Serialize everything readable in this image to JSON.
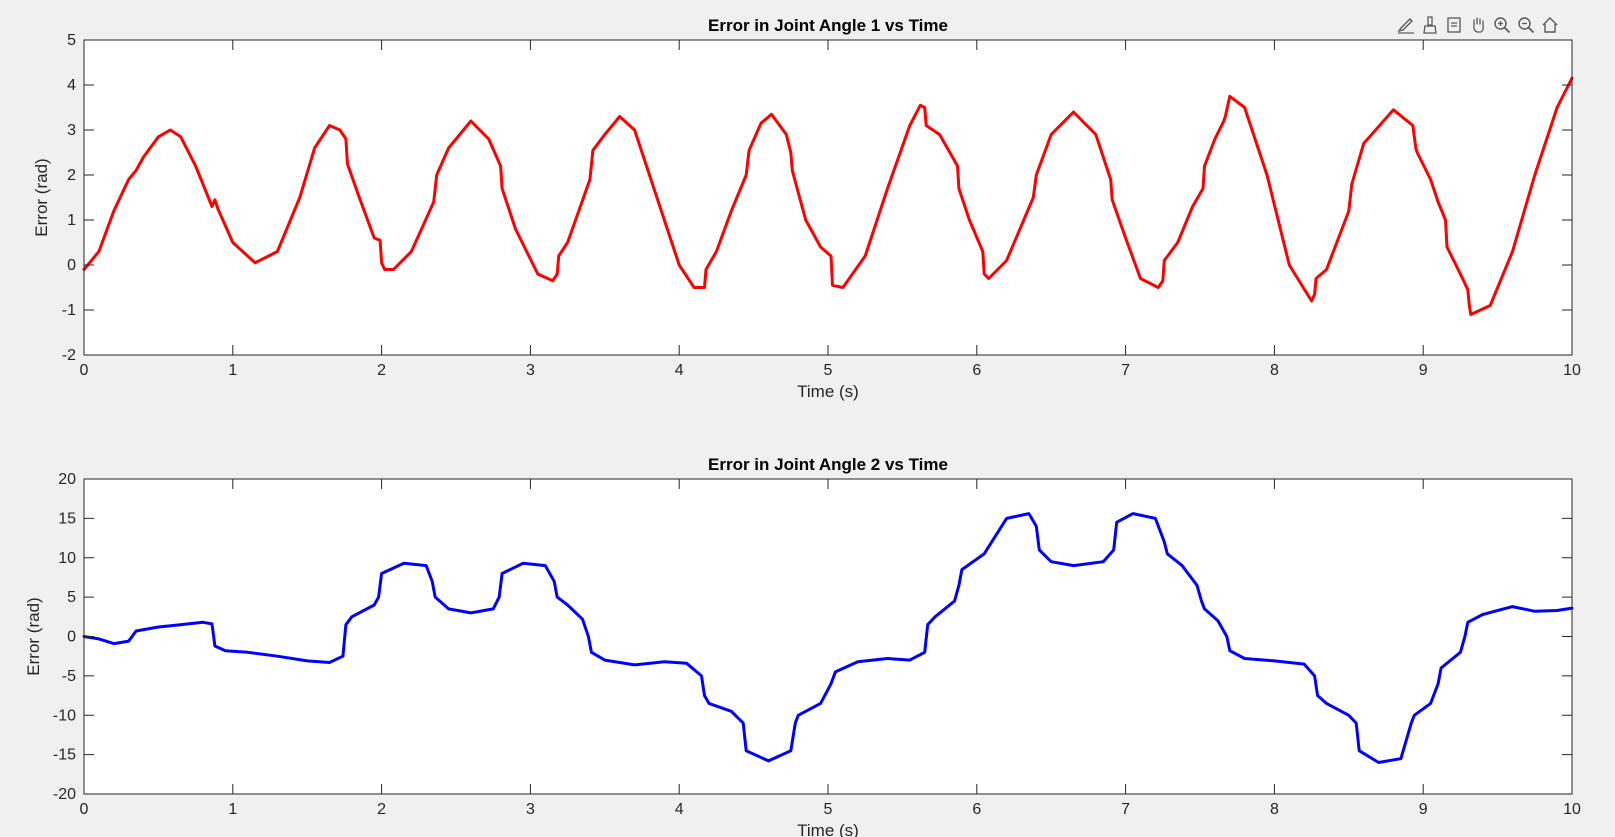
{
  "colors": {
    "background": "#f0f0f0",
    "axes_bg": "#ffffff",
    "axis": "#262626",
    "series1": "#ff0000",
    "series2": "#0000ff"
  },
  "toolbar": {
    "items": [
      {
        "name": "brush-edit-icon"
      },
      {
        "name": "data-brush-icon"
      },
      {
        "name": "data-tips-icon"
      },
      {
        "name": "pan-hand-icon"
      },
      {
        "name": "zoom-in-icon"
      },
      {
        "name": "zoom-out-icon"
      },
      {
        "name": "home-icon"
      }
    ]
  },
  "chart_data": [
    {
      "type": "line",
      "title": "Error in Joint Angle 1 vs Time",
      "xlabel": "Time (s)",
      "ylabel": "Error (rad)",
      "xlim": [
        0,
        10
      ],
      "ylim": [
        -2,
        5
      ],
      "xticks": [
        0,
        1,
        2,
        3,
        4,
        5,
        6,
        7,
        8,
        9,
        10
      ],
      "yticks": [
        -2,
        -1,
        0,
        1,
        2,
        3,
        4,
        5
      ],
      "grid": false,
      "series": [
        {
          "color": "#ff0000",
          "x": [
            0,
            0.1,
            0.2,
            0.3,
            0.35,
            0.4,
            0.5,
            0.58,
            0.65,
            0.75,
            0.86,
            0.88,
            0.9,
            1.0,
            1.15,
            1.3,
            1.45,
            1.55,
            1.65,
            1.72,
            1.76,
            1.77,
            1.85,
            1.95,
            1.99,
            2.0,
            2.02,
            2.08,
            2.2,
            2.35,
            2.37,
            2.45,
            2.6,
            2.72,
            2.8,
            2.81,
            2.9,
            3.05,
            3.15,
            3.18,
            3.19,
            3.25,
            3.4,
            3.42,
            3.5,
            3.6,
            3.7,
            3.85,
            4.0,
            4.1,
            4.17,
            4.18,
            4.25,
            4.35,
            4.45,
            4.47,
            4.55,
            4.62,
            4.72,
            4.75,
            4.76,
            4.85,
            4.95,
            5.02,
            5.03,
            5.1,
            5.25,
            5.4,
            5.55,
            5.62,
            5.65,
            5.66,
            5.75,
            5.87,
            5.88,
            5.95,
            6.04,
            6.05,
            6.08,
            6.2,
            6.38,
            6.4,
            6.5,
            6.65,
            6.8,
            6.9,
            6.91,
            7.0,
            7.1,
            7.22,
            7.25,
            7.26,
            7.35,
            7.45,
            7.52,
            7.53,
            7.6,
            7.66,
            7.67,
            7.7,
            7.8,
            7.95,
            8.1,
            8.25,
            8.27,
            8.28,
            8.35,
            8.5,
            8.52,
            8.6,
            8.8,
            8.93,
            8.95,
            8.96,
            9.05,
            9.1,
            9.15,
            9.16,
            9.25,
            9.3,
            9.31,
            9.32,
            9.45,
            9.6,
            9.75,
            9.9,
            10.0
          ],
          "y": [
            -0.1,
            0.3,
            1.2,
            1.9,
            2.1,
            2.4,
            2.85,
            3.0,
            2.85,
            2.2,
            1.3,
            1.45,
            1.25,
            0.5,
            0.05,
            0.3,
            1.5,
            2.6,
            3.1,
            3.0,
            2.8,
            2.25,
            1.5,
            0.6,
            0.55,
            0.05,
            -0.1,
            -0.1,
            0.3,
            1.4,
            2.0,
            2.6,
            3.2,
            2.8,
            2.2,
            1.7,
            0.8,
            -0.2,
            -0.35,
            -0.2,
            0.2,
            0.5,
            1.9,
            2.55,
            2.9,
            3.3,
            3.0,
            1.5,
            0.0,
            -0.5,
            -0.5,
            -0.1,
            0.3,
            1.2,
            2.0,
            2.55,
            3.15,
            3.35,
            2.9,
            2.5,
            2.1,
            1.0,
            0.4,
            0.2,
            -0.45,
            -0.5,
            0.2,
            1.7,
            3.1,
            3.55,
            3.5,
            3.1,
            2.9,
            2.2,
            1.7,
            1.0,
            0.3,
            -0.2,
            -0.3,
            0.1,
            1.5,
            2.0,
            2.9,
            3.4,
            2.9,
            1.9,
            1.45,
            0.6,
            -0.3,
            -0.5,
            -0.35,
            0.1,
            0.5,
            1.3,
            1.7,
            2.2,
            2.8,
            3.2,
            3.3,
            3.75,
            3.5,
            2.0,
            0.0,
            -0.8,
            -0.65,
            -0.3,
            -0.1,
            1.2,
            1.8,
            2.7,
            3.45,
            3.1,
            2.6,
            2.5,
            1.9,
            1.4,
            1.0,
            0.4,
            -0.2,
            -0.55,
            -0.9,
            -1.1,
            -0.9,
            0.3,
            2.0,
            3.5,
            4.15
          ]
        }
      ]
    },
    {
      "type": "line",
      "title": "Error in Joint Angle 2 vs Time",
      "xlabel": "Time (s)",
      "ylabel": "Error (rad)",
      "xlim": [
        0,
        10
      ],
      "ylim": [
        -20,
        20
      ],
      "xticks": [
        0,
        1,
        2,
        3,
        4,
        5,
        6,
        7,
        8,
        9,
        10
      ],
      "yticks": [
        -20,
        -15,
        -10,
        -5,
        0,
        5,
        10,
        15,
        20
      ],
      "grid": false,
      "series": [
        {
          "color": "#0000ff",
          "x": [
            0,
            0.1,
            0.2,
            0.3,
            0.35,
            0.5,
            0.6,
            0.8,
            0.86,
            0.88,
            0.95,
            1.1,
            1.3,
            1.5,
            1.65,
            1.74,
            1.76,
            1.8,
            1.95,
            1.98,
            2.0,
            2.15,
            2.3,
            2.34,
            2.36,
            2.45,
            2.6,
            2.75,
            2.79,
            2.81,
            2.95,
            3.1,
            3.16,
            3.18,
            3.25,
            3.35,
            3.39,
            3.41,
            3.5,
            3.7,
            3.9,
            4.05,
            4.15,
            4.17,
            4.2,
            4.35,
            4.43,
            4.45,
            4.6,
            4.75,
            4.78,
            4.8,
            4.95,
            5.02,
            5.05,
            5.2,
            5.4,
            5.55,
            5.65,
            5.67,
            5.72,
            5.85,
            5.88,
            5.9,
            6.05,
            6.2,
            6.35,
            6.4,
            6.42,
            6.5,
            6.65,
            6.85,
            6.92,
            6.94,
            7.05,
            7.2,
            7.26,
            7.28,
            7.38,
            7.48,
            7.51,
            7.53,
            7.62,
            7.68,
            7.7,
            7.8,
            8.0,
            8.2,
            8.27,
            8.29,
            8.35,
            8.5,
            8.55,
            8.57,
            8.7,
            8.85,
            8.92,
            8.94,
            9.05,
            9.1,
            9.12,
            9.25,
            9.28,
            9.3,
            9.4,
            9.6,
            9.75,
            9.9,
            10.0
          ],
          "y": [
            0,
            -0.3,
            -0.9,
            -0.6,
            0.7,
            1.2,
            1.4,
            1.8,
            1.6,
            -1.2,
            -1.8,
            -2.0,
            -2.5,
            -3.1,
            -3.3,
            -2.5,
            1.5,
            2.5,
            4.0,
            5.0,
            8.0,
            9.3,
            9.0,
            7.0,
            5.0,
            3.5,
            3.0,
            3.5,
            5.0,
            8.0,
            9.3,
            9.0,
            7.0,
            5.0,
            4.0,
            2.2,
            0.0,
            -2.0,
            -3.0,
            -3.6,
            -3.2,
            -3.4,
            -5.0,
            -7.5,
            -8.5,
            -9.5,
            -11.0,
            -14.5,
            -15.8,
            -14.5,
            -11.0,
            -10.0,
            -8.5,
            -6.0,
            -4.5,
            -3.2,
            -2.8,
            -3.0,
            -2.0,
            1.5,
            2.5,
            4.5,
            6.5,
            8.5,
            10.5,
            15.0,
            15.6,
            14.0,
            11.0,
            9.5,
            9.0,
            9.5,
            11.0,
            14.5,
            15.6,
            15.0,
            12.0,
            10.5,
            9.0,
            6.5,
            4.5,
            3.5,
            2.0,
            0.0,
            -1.8,
            -2.8,
            -3.1,
            -3.5,
            -5.0,
            -7.5,
            -8.5,
            -10.0,
            -11.0,
            -14.5,
            -16.0,
            -15.5,
            -11.0,
            -10.0,
            -8.5,
            -6.0,
            -4.0,
            -2.0,
            0.0,
            1.8,
            2.8,
            3.8,
            3.2,
            3.3,
            3.6
          ]
        }
      ]
    }
  ]
}
